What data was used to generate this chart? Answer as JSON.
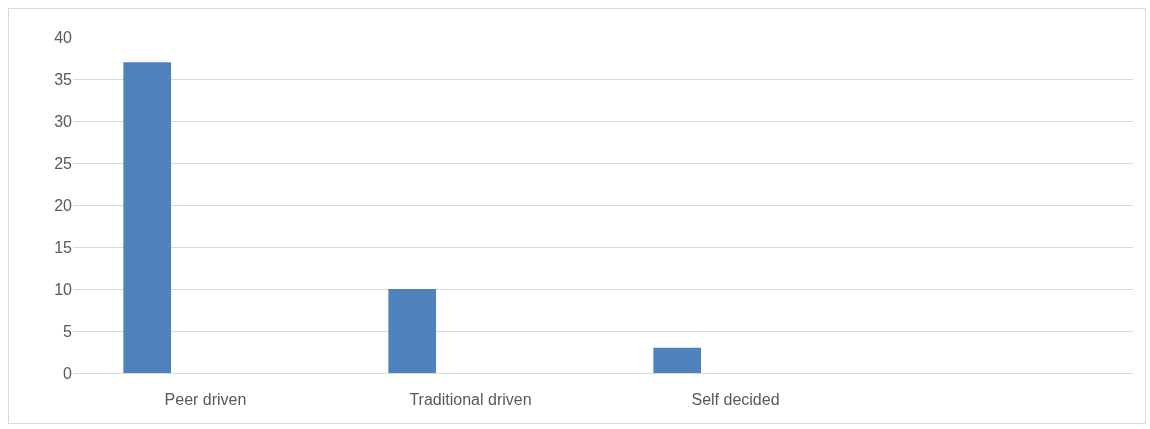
{
  "chart_data": {
    "type": "bar",
    "categories": [
      "Peer driven",
      "Traditional driven",
      "Self decided",
      null
    ],
    "values": [
      37,
      10,
      3,
      null
    ],
    "color": "#4f81bd",
    "ylim": [
      0,
      40
    ],
    "yticks": [
      0,
      5,
      10,
      15,
      20,
      25,
      30,
      35,
      40
    ],
    "grid": "y"
  }
}
